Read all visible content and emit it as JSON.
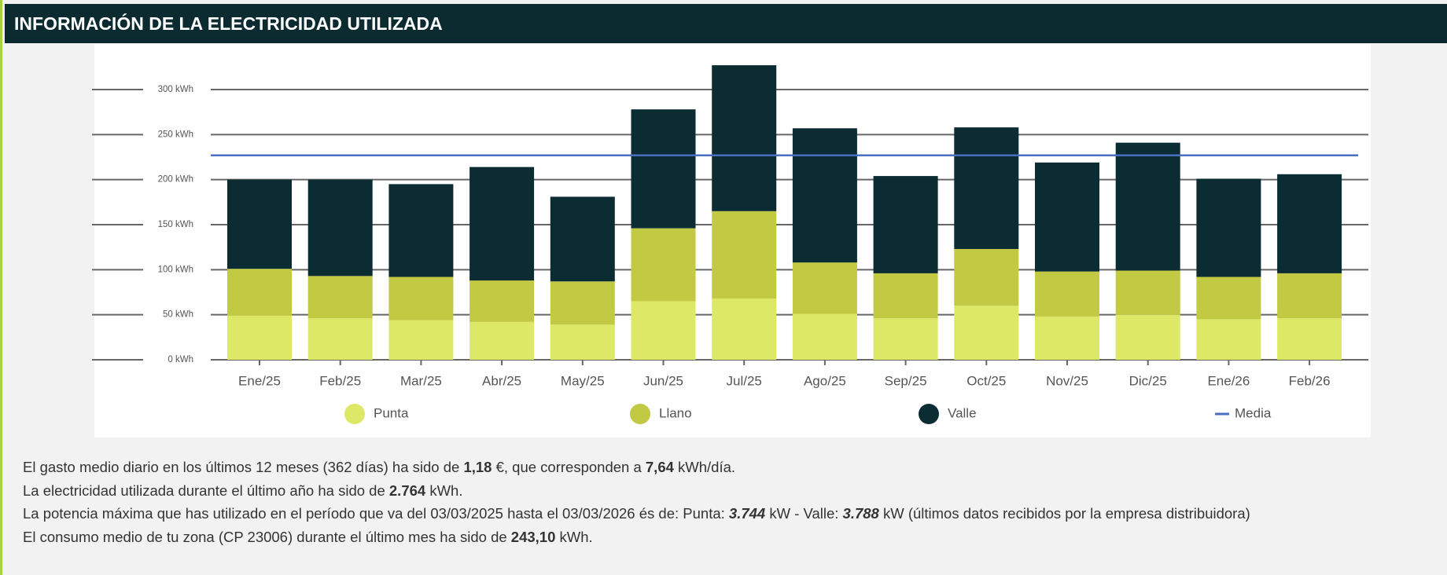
{
  "header": {
    "title": "INFORMACIÓN DE LA ELECTRICIDAD UTILIZADA"
  },
  "chart_data": {
    "type": "bar",
    "stacked": true,
    "categories": [
      "Ene/25",
      "Feb/25",
      "Mar/25",
      "Abr/25",
      "May/25",
      "Jun/25",
      "Jul/25",
      "Ago/25",
      "Sep/25",
      "Oct/25",
      "Nov/25",
      "Dic/25",
      "Ene/26",
      "Feb/26"
    ],
    "series": [
      {
        "name": "Punta",
        "color": "#dde866",
        "values": [
          49,
          46,
          44,
          42,
          39,
          65,
          68,
          51,
          46,
          60,
          48,
          50,
          45,
          46
        ]
      },
      {
        "name": "Llano",
        "color": "#c2c943",
        "values": [
          52,
          47,
          48,
          46,
          48,
          81,
          97,
          57,
          50,
          63,
          50,
          49,
          47,
          50
        ]
      },
      {
        "name": "Valle",
        "color": "#0c2c33",
        "values": [
          99,
          107,
          103,
          126,
          94,
          132,
          162,
          149,
          108,
          135,
          121,
          142,
          109,
          110
        ]
      }
    ],
    "media": {
      "name": "Media",
      "color": "#4a6fc0",
      "value": 227
    },
    "ylim": [
      0,
      340
    ],
    "yticks": [
      {
        "value": 0,
        "label": "0 kWh"
      },
      {
        "value": 50,
        "label": "50 kWh"
      },
      {
        "value": 100,
        "label": "100 kWh"
      },
      {
        "value": 150,
        "label": "150 kWh"
      },
      {
        "value": 200,
        "label": "200 kWh"
      },
      {
        "value": 250,
        "label": "250 kWh"
      },
      {
        "value": 300,
        "label": "300 kWh"
      }
    ],
    "grid": true
  },
  "info": {
    "lines": [
      [
        {
          "text": "El gasto medio diario en los últimos 12 meses (362 días) ha sido de "
        },
        {
          "text": "1,18",
          "bold": true
        },
        {
          "text": " €, que corresponden a "
        },
        {
          "text": "7,64",
          "bold": true
        },
        {
          "text": " kWh/día."
        }
      ],
      [
        {
          "text": "La electricidad utilizada durante el último año ha sido de "
        },
        {
          "text": "2.764",
          "bold": true
        },
        {
          "text": " kWh."
        }
      ],
      [
        {
          "text": "La potencia máxima que has utilizado en el período que va del 03/03/2025 hasta el 03/03/2026 és de: Punta: "
        },
        {
          "text": "3.744",
          "bold": true,
          "italic": true
        },
        {
          "text": " kW - Valle: "
        },
        {
          "text": "3.788",
          "bold": true,
          "italic": true
        },
        {
          "text": " kW (últimos datos recibidos por la empresa distribuidora)"
        }
      ],
      [
        {
          "text": "El consumo medio de tu zona (CP 23006) durante el último mes ha sido de "
        },
        {
          "text": "243,10",
          "bold": true
        },
        {
          "text": " kWh."
        }
      ]
    ]
  }
}
